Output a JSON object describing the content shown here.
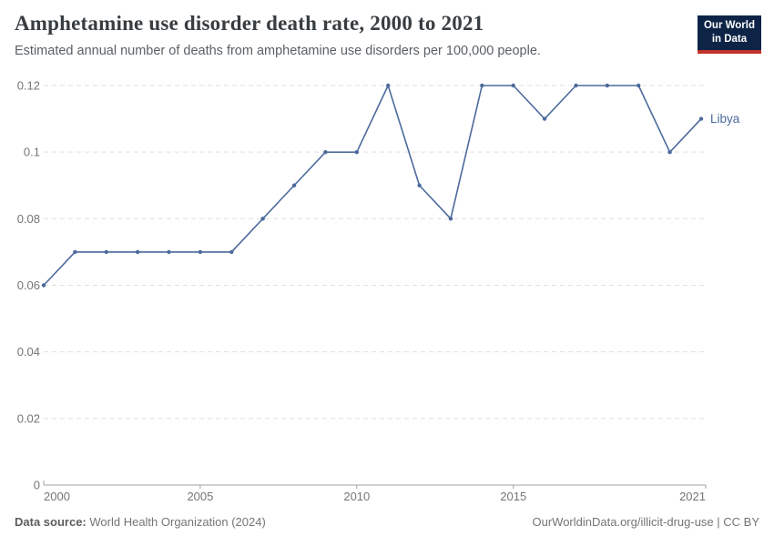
{
  "header": {
    "title": "Amphetamine use disorder death rate, 2000 to 2021",
    "subtitle": "Estimated annual number of deaths from amphetamine use disorders per 100,000 people."
  },
  "logo": {
    "line1": "Our World",
    "line2": "in Data"
  },
  "footer": {
    "source_label": "Data source:",
    "source_value": "World Health Organization (2024)",
    "rights": "OurWorldinData.org/illicit-drug-use | CC BY"
  },
  "colors": {
    "line": "#4c6a9c",
    "entity_label": "#4c6a9c",
    "grid": "#e0e0e0",
    "axis": "#a3a3a3",
    "tick_text": "#757575",
    "logo_bg": "#0d2447",
    "logo_red": "#c1322b"
  },
  "chart_data": {
    "type": "line",
    "title": "Amphetamine use disorder death rate, 2000 to 2021",
    "xlabel": "",
    "ylabel": "",
    "xlim": [
      2000,
      2021
    ],
    "ylim": [
      0,
      0.12
    ],
    "grid": "horizontal-dashed",
    "legend_position": "end-of-line",
    "x_ticks": [
      {
        "value": 2000,
        "label": "2000"
      },
      {
        "value": 2005,
        "label": "2005"
      },
      {
        "value": 2010,
        "label": "2010"
      },
      {
        "value": 2015,
        "label": "2015"
      },
      {
        "value": 2021,
        "label": "2021"
      }
    ],
    "y_ticks": [
      {
        "value": 0,
        "label": "0"
      },
      {
        "value": 0.02,
        "label": "0.02"
      },
      {
        "value": 0.04,
        "label": "0.04"
      },
      {
        "value": 0.06,
        "label": "0.06"
      },
      {
        "value": 0.08,
        "label": "0.08"
      },
      {
        "value": 0.1,
        "label": "0.1"
      },
      {
        "value": 0.12,
        "label": "0.12"
      }
    ],
    "series": [
      {
        "name": "Libya",
        "color": "#4c6a9c",
        "x": [
          2000,
          2001,
          2002,
          2003,
          2004,
          2005,
          2006,
          2007,
          2008,
          2009,
          2010,
          2011,
          2012,
          2013,
          2014,
          2015,
          2016,
          2017,
          2018,
          2019,
          2020,
          2021
        ],
        "values": [
          0.06,
          0.07,
          0.07,
          0.07,
          0.07,
          0.07,
          0.07,
          0.08,
          0.09,
          0.1,
          0.1,
          0.12,
          0.09,
          0.08,
          0.12,
          0.12,
          0.11,
          0.12,
          0.12,
          0.12,
          0.1,
          0.11
        ]
      }
    ]
  }
}
